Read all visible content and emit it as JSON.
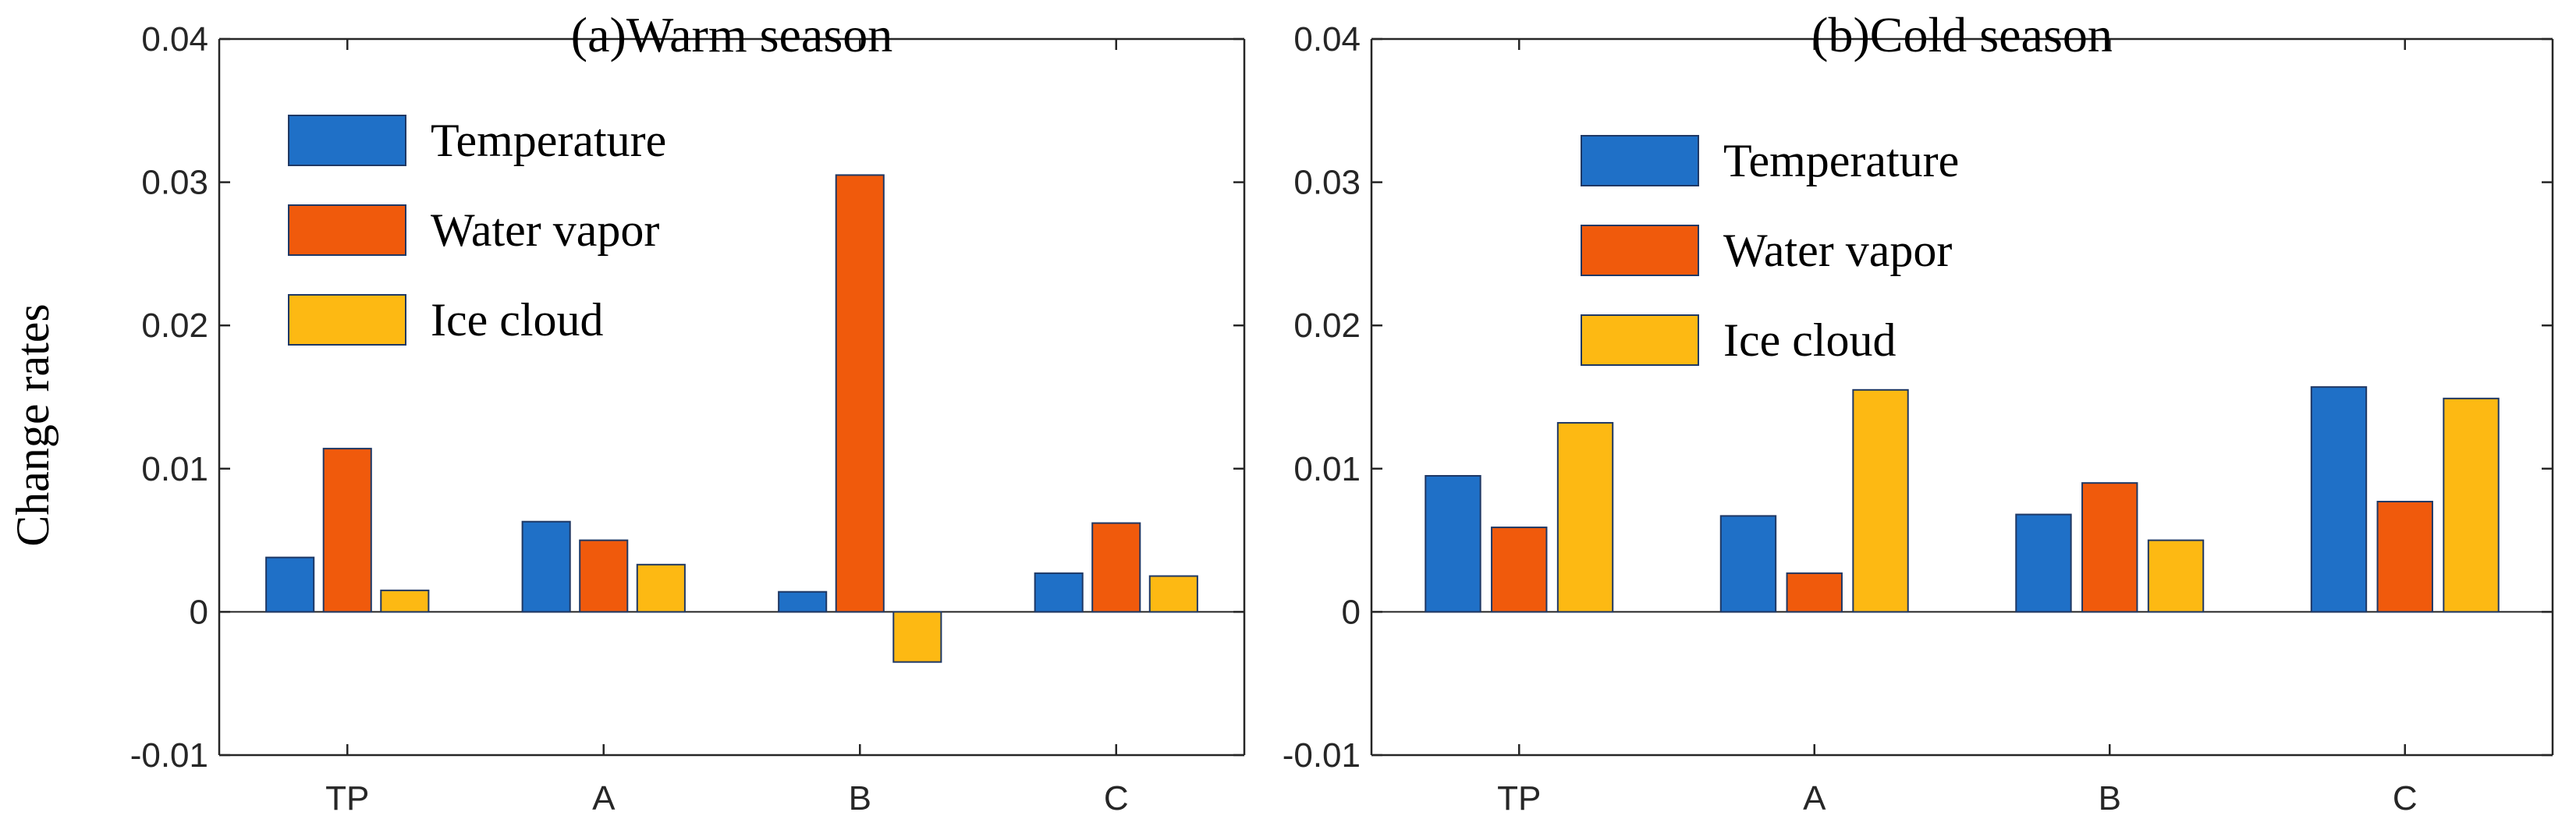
{
  "figure": {
    "ylabel": "Change rates",
    "colors": {
      "Temperature": "#1f70c7",
      "Water vapor": "#f05a0c",
      "Ice cloud": "#fdb913"
    }
  },
  "chart_data": [
    {
      "type": "bar",
      "title": "(a)Warm season",
      "categories": [
        "TP",
        "A",
        "B",
        "C"
      ],
      "series": [
        {
          "name": "Temperature",
          "values": [
            0.0038,
            0.0063,
            0.0014,
            0.0027
          ]
        },
        {
          "name": "Water vapor",
          "values": [
            0.0114,
            0.005,
            0.0305,
            0.0062
          ]
        },
        {
          "name": "Ice cloud",
          "values": [
            0.0015,
            0.0033,
            -0.0035,
            0.0025
          ]
        }
      ],
      "xlabel": "",
      "ylabel": "Change rates",
      "ylim": [
        -0.01,
        0.04
      ],
      "yticks": [
        "-0.01",
        "0",
        "0.01",
        "0.02",
        "0.03",
        "0.04"
      ],
      "legend": "top-left"
    },
    {
      "type": "bar",
      "title": "(b)Cold season",
      "categories": [
        "TP",
        "A",
        "B",
        "C"
      ],
      "series": [
        {
          "name": "Temperature",
          "values": [
            0.0095,
            0.0067,
            0.0068,
            0.0157
          ]
        },
        {
          "name": "Water vapor",
          "values": [
            0.0059,
            0.0027,
            0.009,
            0.0077
          ]
        },
        {
          "name": "Ice cloud",
          "values": [
            0.0132,
            0.0155,
            0.005,
            0.0149
          ]
        }
      ],
      "xlabel": "",
      "ylabel": "",
      "ylim": [
        -0.01,
        0.04
      ],
      "yticks": [
        "-0.01",
        "0",
        "0.01",
        "0.02",
        "0.03",
        "0.04"
      ],
      "legend": "top-left"
    }
  ]
}
